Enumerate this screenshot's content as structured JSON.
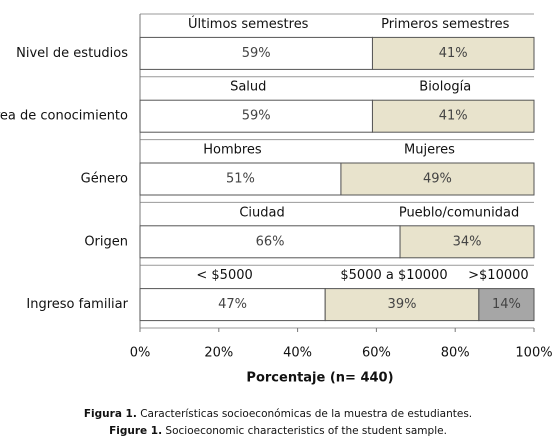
{
  "chart_data": {
    "type": "stacked-bar-horizontal",
    "xlabel": "Porcentaje (n= 440)",
    "xlim": [
      0,
      100
    ],
    "xticks": [
      {
        "value": 0,
        "label": "0%"
      },
      {
        "value": 20,
        "label": "20%"
      },
      {
        "value": 40,
        "label": "40%"
      },
      {
        "value": 60,
        "label": "60%"
      },
      {
        "value": 80,
        "label": "80%"
      },
      {
        "value": 100,
        "label": "100%"
      }
    ],
    "colors": [
      "#ffffff",
      "#e8e3cc",
      "#a6a6a6"
    ],
    "grid": true,
    "rows": [
      {
        "label": "Nivel de estudios",
        "segments": [
          "Últimos semestres",
          "Primeros semestres"
        ],
        "values": [
          59,
          41
        ],
        "value_labels": [
          "59%",
          "41%"
        ]
      },
      {
        "label": "Área de conocimiento",
        "segments": [
          "Salud",
          "Biología"
        ],
        "values": [
          59,
          41
        ],
        "value_labels": [
          "59%",
          "41%"
        ]
      },
      {
        "label": "Género",
        "segments": [
          "Hombres",
          "Mujeres"
        ],
        "values": [
          51,
          49
        ],
        "value_labels": [
          "51%",
          "49%"
        ]
      },
      {
        "label": "Origen",
        "segments": [
          "Ciudad",
          "Pueblo/comunidad"
        ],
        "values": [
          66,
          34
        ],
        "value_labels": [
          "66%",
          "34%"
        ]
      },
      {
        "label": "Ingreso familiar",
        "segments": [
          "< $5000",
          "$5000 a $10000",
          ">$10000"
        ],
        "values": [
          47,
          39,
          14
        ],
        "value_labels": [
          "47%",
          "39%",
          "14%"
        ]
      }
    ]
  },
  "caption": {
    "es_label": "Figura 1.",
    "es_text": "Características socioeconómicas de la muestra de estudiantes.",
    "en_label": "Figure 1.",
    "en_text": "Socioeconomic characteristics of the student sample."
  }
}
